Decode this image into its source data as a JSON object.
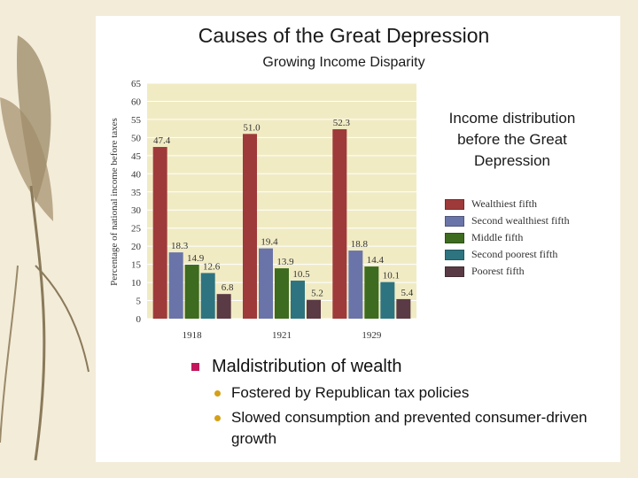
{
  "slide": {
    "title": "Causes of the Great Depression",
    "subtitle": "Growing Income Disparity",
    "legend_title": [
      "Income distribution",
      "before the Great",
      "Depression"
    ],
    "bullets": {
      "main": "Maldistribution of wealth",
      "sub": [
        "Fostered by Republican tax policies",
        "Slowed consumption and prevented consumer-driven growth"
      ]
    }
  },
  "chart_data": {
    "type": "bar",
    "ylabel": "Percentage of national income before taxes",
    "ylim": [
      0,
      65
    ],
    "yticks": [
      0,
      5,
      10,
      15,
      20,
      25,
      30,
      35,
      40,
      45,
      50,
      55,
      60,
      65
    ],
    "categories": [
      "1918",
      "1921",
      "1929"
    ],
    "grid": true,
    "series": [
      {
        "name": "Wealthiest fifth",
        "color": "#9e3a3a",
        "values": [
          47.4,
          51.0,
          52.3
        ]
      },
      {
        "name": "Second wealthiest fifth",
        "color": "#6a74a8",
        "values": [
          18.3,
          19.4,
          18.8
        ]
      },
      {
        "name": "Middle fifth",
        "color": "#3d6b1f",
        "values": [
          14.9,
          13.9,
          14.4
        ]
      },
      {
        "name": "Second poorest fifth",
        "color": "#2e7480",
        "values": [
          12.6,
          10.5,
          10.1
        ]
      },
      {
        "name": "Poorest fifth",
        "color": "#5a3a44",
        "values": [
          6.8,
          5.2,
          5.4
        ]
      }
    ],
    "value_labels": [
      [
        "47.4",
        "51.0",
        "52.3"
      ],
      [
        "18.3",
        "19.4",
        "18.8"
      ],
      [
        "14.9",
        "13.9",
        "14.4"
      ],
      [
        "12.6",
        "10.5",
        "10.1"
      ],
      [
        "6.8",
        "5.2",
        "5.4"
      ]
    ]
  }
}
